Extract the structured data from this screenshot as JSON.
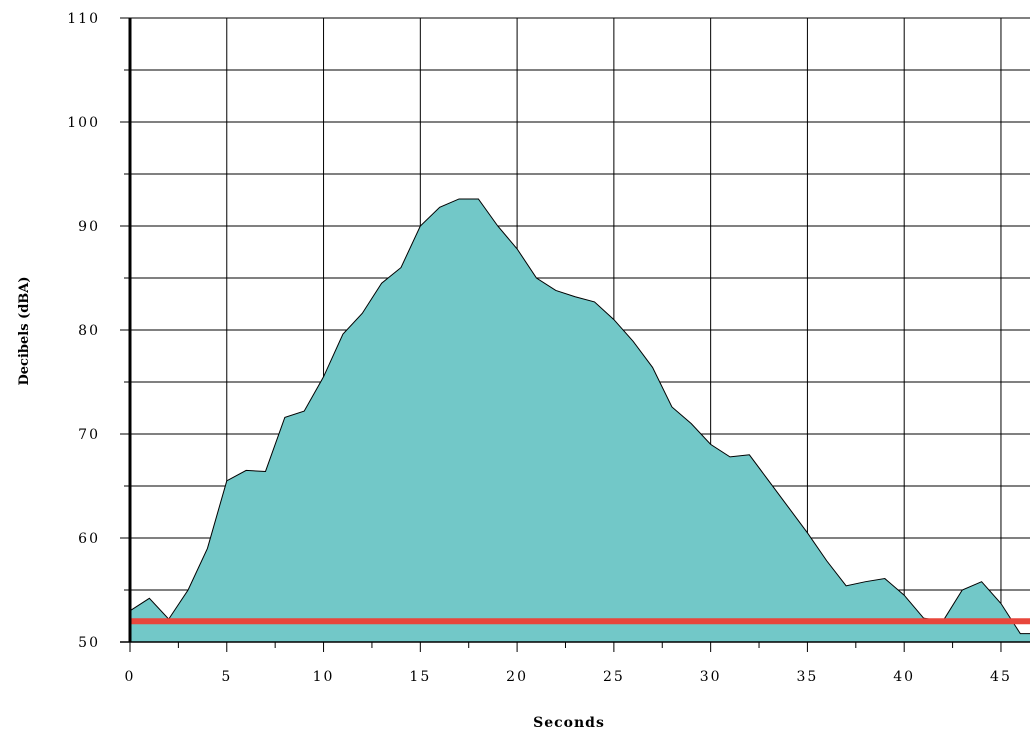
{
  "chart_data": {
    "type": "area",
    "xlabel": "Seconds",
    "ylabel": "Decibels (dBA)",
    "xlim": [
      0,
      46.5
    ],
    "ylim": [
      50,
      110
    ],
    "x_ticks": [
      0,
      5,
      10,
      15,
      20,
      25,
      30,
      35,
      40,
      45
    ],
    "y_ticks": [
      50,
      60,
      70,
      80,
      90,
      100,
      110
    ],
    "x_minor_step": 2.5,
    "y_minor_step": 5,
    "grid": true,
    "fill_color": "#72C8C8",
    "series": [
      {
        "x": [
          0,
          1,
          2,
          3,
          4,
          5,
          6,
          7,
          8,
          9,
          10,
          11,
          12,
          13,
          14,
          15,
          16,
          17,
          18,
          19,
          20,
          21,
          22,
          23,
          24,
          25,
          26,
          27,
          28,
          29,
          30,
          31,
          32,
          33,
          34,
          35,
          36,
          37,
          38,
          39,
          40,
          41,
          42,
          43,
          44,
          45,
          46,
          46.5
        ],
        "y": [
          53,
          54.2,
          52.2,
          55,
          59,
          65.5,
          66.5,
          66.4,
          71.6,
          72.2,
          75.5,
          79.6,
          81.6,
          84.5,
          86,
          90,
          91.8,
          92.6,
          92.6,
          90,
          87.8,
          85,
          83.8,
          83.2,
          82.7,
          81,
          78.9,
          76.4,
          72.6,
          71,
          69,
          67.8,
          68,
          65.5,
          63,
          60.5,
          57.8,
          55.4,
          55.8,
          56.1,
          54.5,
          52.3,
          52,
          55,
          55.8,
          53.7,
          50.8,
          50.8
        ]
      }
    ],
    "reference_line": {
      "y": 52,
      "color": "#E8463C"
    }
  }
}
